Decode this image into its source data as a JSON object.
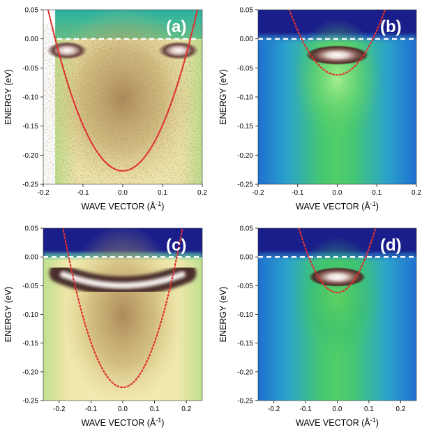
{
  "figure": {
    "ylabel": "ENERGY (eV)",
    "xlabel_main": "WAVE VECTOR (Å",
    "xlabel_sup": "-1",
    "xlabel_end": ")"
  },
  "chart_data": [
    {
      "type": "heatmap",
      "panel_label": "(a)",
      "xlabel": "WAVE VECTOR (Å⁻¹)",
      "ylabel": "ENERGY (eV)",
      "xlim": [
        -0.2,
        0.2
      ],
      "ylim": [
        -0.25,
        0.05
      ],
      "xticks": [
        -0.2,
        -0.1,
        0.0,
        0.1,
        0.2
      ],
      "xtick_labels": [
        "-0.2",
        "-0.1",
        "0.0",
        "0.1",
        "0.2"
      ],
      "yticks": [
        0.05,
        0.0,
        -0.05,
        -0.1,
        -0.15,
        -0.2,
        -0.25
      ],
      "ytick_labels": [
        "0.05",
        "0.00",
        "-0.05",
        "-0.10",
        "-0.15",
        "-0.20",
        "-0.25"
      ],
      "data_xlim": [
        -0.17,
        0.2
      ],
      "fermi_level": 0.0,
      "dispersion": {
        "style": "red dashed parabola",
        "minimum_energy": -0.227,
        "kF": 0.17
      },
      "flat_band": {
        "energy": -0.02,
        "k_range": [
          -0.17,
          0.17
        ],
        "suppressed_center": true
      },
      "colormap": "yellow-brown",
      "colors": {
        "below": "#e4dc9c",
        "above": "#2fb4a0",
        "band": "#4a2e2a",
        "curve": "#e03030"
      }
    },
    {
      "type": "heatmap",
      "panel_label": "(b)",
      "xlabel": "WAVE VECTOR (Å⁻¹)",
      "ylabel": "ENERGY (eV)",
      "xlim": [
        -0.2,
        0.2
      ],
      "ylim": [
        -0.25,
        0.05
      ],
      "xticks": [
        -0.2,
        -0.1,
        0.0,
        0.1,
        0.2
      ],
      "xtick_labels": [
        "-0.2",
        "-0.1",
        "0.0",
        "0.1",
        "0.2"
      ],
      "yticks": [
        0.05,
        0.0,
        -0.05,
        -0.1,
        -0.15,
        -0.2,
        -0.25
      ],
      "ytick_labels": [
        "0.05",
        "0.00",
        "-0.05",
        "-0.10",
        "-0.15",
        "-0.20",
        "-0.25"
      ],
      "data_xlim": [
        -0.2,
        0.2
      ],
      "fermi_level": 0.0,
      "dispersion": {
        "style": "red dotted parabola",
        "minimum_energy": -0.062,
        "kF": 0.09
      },
      "flat_band": {
        "energy": -0.028,
        "k_range": [
          -0.08,
          0.08
        ],
        "suppressed_center": false
      },
      "colormap": "blue-green",
      "colors": {
        "below": "#3cc070",
        "above": "#1a1e8a",
        "band": "#4a2e2a",
        "curve": "#e03030"
      }
    },
    {
      "type": "heatmap",
      "panel_label": "(c)",
      "xlabel": "WAVE VECTOR (Å⁻¹)",
      "ylabel": "ENERGY (eV)",
      "xlim": [
        -0.25,
        0.25
      ],
      "ylim": [
        -0.25,
        0.05
      ],
      "xticks": [
        -0.2,
        -0.1,
        0.0,
        0.1,
        0.2
      ],
      "xtick_labels": [
        "-0.2",
        "-0.1",
        "0.0",
        "0.1",
        "0.2"
      ],
      "yticks": [
        0.05,
        0.0,
        -0.05,
        -0.1,
        -0.15,
        -0.2,
        -0.25
      ],
      "ytick_labels": [
        "0.05",
        "0.00",
        "-0.05",
        "-0.10",
        "-0.15",
        "-0.20",
        "-0.25"
      ],
      "data_xlim": [
        -0.25,
        0.25
      ],
      "fermi_level": 0.0,
      "dispersion": {
        "style": "red dotted parabola",
        "minimum_energy": -0.227,
        "kF": 0.17
      },
      "flat_band": {
        "energy": -0.045,
        "k_range": [
          -0.17,
          0.17
        ],
        "suppressed_center": false
      },
      "colormap": "yellow-brown",
      "colors": {
        "below": "#e8e4a0",
        "above": "#1a1e8a",
        "band": "#4a2e2a",
        "curve": "#e03030"
      }
    },
    {
      "type": "heatmap",
      "panel_label": "(d)",
      "xlabel": "WAVE VECTOR (Å⁻¹)",
      "ylabel": "ENERGY (eV)",
      "xlim": [
        -0.25,
        0.25
      ],
      "ylim": [
        -0.25,
        0.05
      ],
      "xticks": [
        -0.2,
        -0.1,
        0.0,
        0.1,
        0.2
      ],
      "xtick_labels": [
        "-0.2",
        "-0.1",
        "0.0",
        "0.1",
        "0.2"
      ],
      "yticks": [
        0.05,
        0.0,
        -0.05,
        -0.1,
        -0.15,
        -0.2,
        -0.25
      ],
      "ytick_labels": [
        "0.05",
        "0.00",
        "-0.05",
        "-0.10",
        "-0.15",
        "-0.20",
        "-0.25"
      ],
      "data_xlim": [
        -0.25,
        0.25
      ],
      "fermi_level": 0.0,
      "dispersion": {
        "style": "red dotted parabola",
        "minimum_energy": -0.062,
        "kF": 0.09
      },
      "flat_band": {
        "energy": -0.035,
        "k_range": [
          -0.09,
          0.09
        ],
        "suppressed_center": false
      },
      "colormap": "blue-green",
      "colors": {
        "below": "#48c468",
        "above": "#1a1e8a",
        "band": "#4a2e2a",
        "curve": "#e03030"
      }
    }
  ]
}
